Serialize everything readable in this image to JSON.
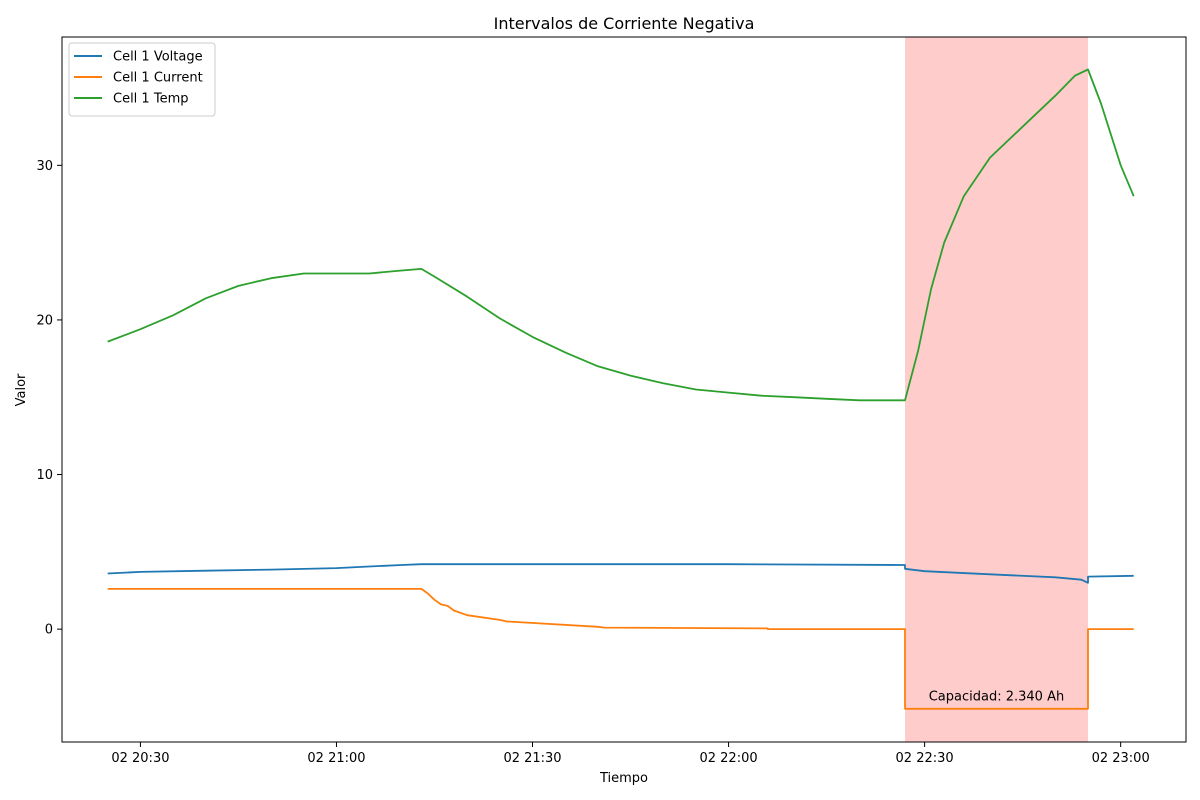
{
  "chart_data": {
    "type": "line",
    "title": "Intervalos de Corriente Negativa",
    "xlabel": "Tiempo",
    "ylabel": "Valor",
    "x_unit": "time (day 02)",
    "xlim": [
      "20:18",
      "23:10"
    ],
    "ylim": [
      -7.3,
      38.3
    ],
    "x_ticks": [
      "02 20:30",
      "02 21:00",
      "02 21:30",
      "02 22:00",
      "02 22:30",
      "02 23:00"
    ],
    "y_ticks": [
      0,
      10,
      20,
      30
    ],
    "grid": false,
    "legend_position": "top-left",
    "highlight_interval": {
      "start": "22:27",
      "end": "22:55",
      "color": "#ffcccc",
      "label": "Capacidad: 2.340 Ah"
    },
    "series": [
      {
        "name": "Cell 1 Voltage",
        "color": "#1f77b4",
        "x": [
          "20:25",
          "20:30",
          "20:40",
          "20:50",
          "21:00",
          "21:05",
          "21:10",
          "21:13",
          "21:30",
          "21:45",
          "22:00",
          "22:10",
          "22:27",
          "22:27",
          "22:30",
          "22:40",
          "22:50",
          "22:54",
          "22:55",
          "22:55",
          "23:02"
        ],
        "y": [
          3.6,
          3.7,
          3.78,
          3.85,
          3.95,
          4.05,
          4.15,
          4.2,
          4.2,
          4.2,
          4.2,
          4.18,
          4.15,
          3.9,
          3.75,
          3.55,
          3.35,
          3.2,
          3.0,
          3.4,
          3.45
        ]
      },
      {
        "name": "Cell 1 Current",
        "color": "#ff7f0e",
        "x": [
          "20:25",
          "21:13",
          "21:14",
          "21:15",
          "21:16",
          "21:17",
          "21:18",
          "21:20",
          "21:25",
          "21:26",
          "21:40",
          "21:41",
          "22:06",
          "22:06",
          "22:27",
          "22:27",
          "22:55",
          "22:55",
          "23:02"
        ],
        "y": [
          2.6,
          2.6,
          2.3,
          1.9,
          1.6,
          1.5,
          1.2,
          0.9,
          0.6,
          0.5,
          0.15,
          0.1,
          0.05,
          0.0,
          0.0,
          -5.15,
          -5.15,
          0.0,
          0.0
        ]
      },
      {
        "name": "Cell 1 Temp",
        "color": "#2ca02c",
        "x": [
          "20:25",
          "20:30",
          "20:35",
          "20:40",
          "20:45",
          "20:50",
          "20:55",
          "21:00",
          "21:05",
          "21:10",
          "21:13",
          "21:15",
          "21:20",
          "21:25",
          "21:30",
          "21:35",
          "21:40",
          "21:45",
          "21:50",
          "21:55",
          "22:00",
          "22:05",
          "22:10",
          "22:15",
          "22:20",
          "22:27",
          "22:29",
          "22:31",
          "22:33",
          "22:36",
          "22:40",
          "22:45",
          "22:50",
          "22:53",
          "22:55",
          "22:57",
          "23:00",
          "23:02"
        ],
        "y": [
          18.6,
          19.4,
          20.3,
          21.4,
          22.2,
          22.7,
          23.0,
          23.0,
          23.0,
          23.2,
          23.3,
          22.8,
          21.5,
          20.1,
          18.9,
          17.9,
          17.0,
          16.4,
          15.9,
          15.5,
          15.3,
          15.1,
          15.0,
          14.9,
          14.8,
          14.8,
          18.0,
          22.0,
          25.0,
          28.0,
          30.5,
          32.5,
          34.5,
          35.8,
          36.2,
          34.0,
          30.0,
          28.0
        ]
      }
    ]
  }
}
